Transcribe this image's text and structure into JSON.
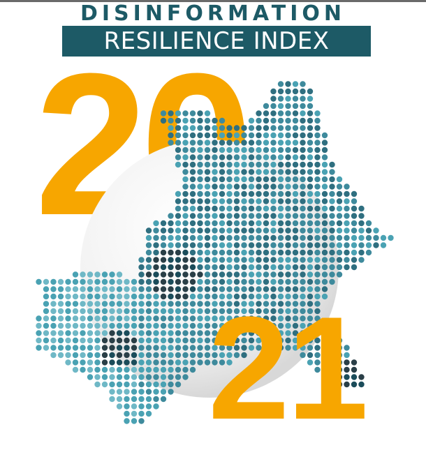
{
  "cover": {
    "title_line1": "DISINFORMATION",
    "title_line2": "RESILIENCE INDEX",
    "year_top": "20",
    "year_bottom": "21"
  },
  "colors": {
    "brand_teal": "#1d5a66",
    "year_orange": "#f7a600",
    "dot_shades": [
      "#1b4c5a",
      "#2f6f80",
      "#3e8a9c",
      "#4aa2b3",
      "#6fb8c6",
      "#2a3f47"
    ]
  }
}
